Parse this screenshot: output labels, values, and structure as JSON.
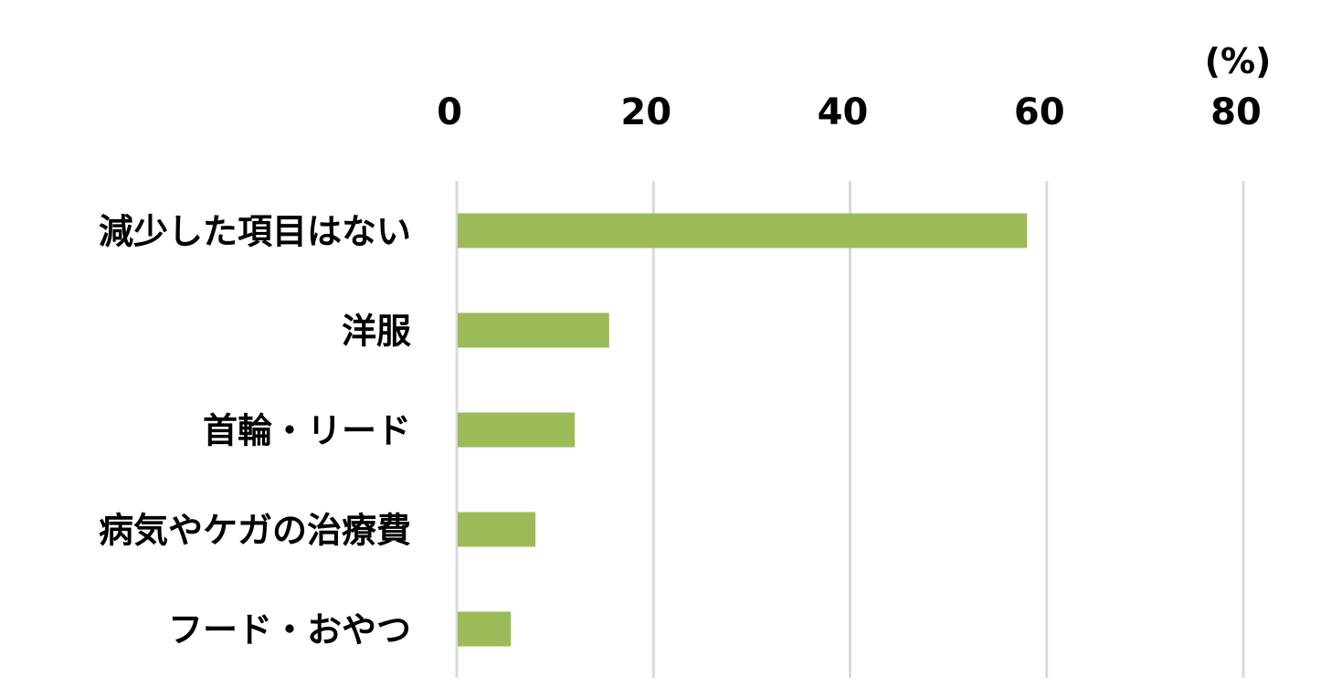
{
  "chart_data": {
    "type": "bar",
    "orientation": "horizontal",
    "unit_label": "(%)",
    "categories": [
      "減少した項目はない",
      "洋服",
      "首輪・リード",
      "病気やケガの治療費",
      "フード・おやつ"
    ],
    "values": [
      58,
      15.5,
      12,
      8,
      5.5
    ],
    "xlim": [
      0,
      80
    ],
    "xticks": [
      "0",
      "20",
      "40",
      "60",
      "80"
    ],
    "tick_values": [
      0,
      20,
      40,
      60,
      80
    ],
    "grid": true,
    "x_axis_position": "top",
    "bar_color": "#9bbb59",
    "grid_color": "#d9d9d9"
  }
}
